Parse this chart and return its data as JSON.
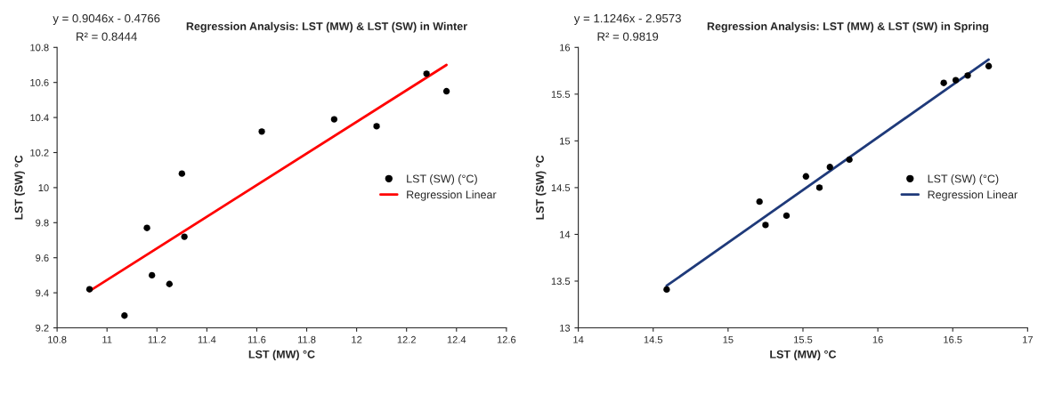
{
  "chart_data": [
    {
      "type": "scatter",
      "title": "Regression Analysis: LST (MW) & LST (SW) in Winter",
      "xlabel": "LST (MW) °C",
      "ylabel": "LST (SW) °C",
      "annotations": [
        "y = 0.9046x - 0.4766",
        "R² = 0.8444"
      ],
      "series": [
        {
          "name": "LST (SW) (°C)",
          "marker": "circle",
          "color": "#000000",
          "x": [
            10.93,
            11.07,
            11.16,
            11.18,
            11.25,
            11.3,
            11.31,
            11.62,
            11.91,
            12.08,
            12.28,
            12.36
          ],
          "values": [
            9.42,
            9.27,
            9.77,
            9.5,
            9.45,
            10.08,
            9.72,
            10.32,
            10.39,
            10.35,
            10.65,
            10.55
          ]
        },
        {
          "name": "Regression Linear",
          "type": "line",
          "marker": "none",
          "color": "#ff0000",
          "x": [
            10.93,
            12.36
          ],
          "values": [
            9.41,
            10.7
          ]
        }
      ],
      "xlim": [
        10.8,
        12.6
      ],
      "xticks": [
        10.8,
        11,
        11.2,
        11.4,
        11.6,
        11.8,
        12,
        12.2,
        12.4,
        12.6
      ],
      "ylim": [
        9.2,
        10.8
      ],
      "yticks": [
        9.2,
        9.4,
        9.6,
        9.8,
        10,
        10.2,
        10.4,
        10.6,
        10.8
      ],
      "line_style": "solid",
      "legend": "right",
      "grid": false
    },
    {
      "type": "scatter",
      "title": "Regression Analysis: LST (MW) & LST (SW) in Spring",
      "xlabel": "LST (MW) °C",
      "ylabel": "LST (SW) °C",
      "annotations": [
        "y = 1.1246x - 2.9573",
        "R² = 0.9819"
      ],
      "series": [
        {
          "name": "LST (SW) (°C)",
          "marker": "circle",
          "color": "#000000",
          "x": [
            14.59,
            15.21,
            15.25,
            15.39,
            15.52,
            15.61,
            15.68,
            15.81,
            16.44,
            16.52,
            16.6,
            16.74
          ],
          "values": [
            13.41,
            14.35,
            14.1,
            14.2,
            14.62,
            14.5,
            14.72,
            14.8,
            15.62,
            15.65,
            15.7,
            15.8
          ]
        },
        {
          "name": "Regression Linear",
          "type": "line",
          "marker": "none",
          "color": "#1f3a7a",
          "x": [
            14.59,
            16.74
          ],
          "values": [
            13.45,
            15.87
          ]
        }
      ],
      "xlim": [
        14,
        17
      ],
      "xticks": [
        14,
        14.5,
        15,
        15.5,
        16,
        16.5,
        17
      ],
      "ylim": [
        13,
        16
      ],
      "yticks": [
        13,
        13.5,
        14,
        14.5,
        15,
        15.5,
        16
      ],
      "line_style": "solid",
      "legend": "right",
      "grid": false
    }
  ]
}
